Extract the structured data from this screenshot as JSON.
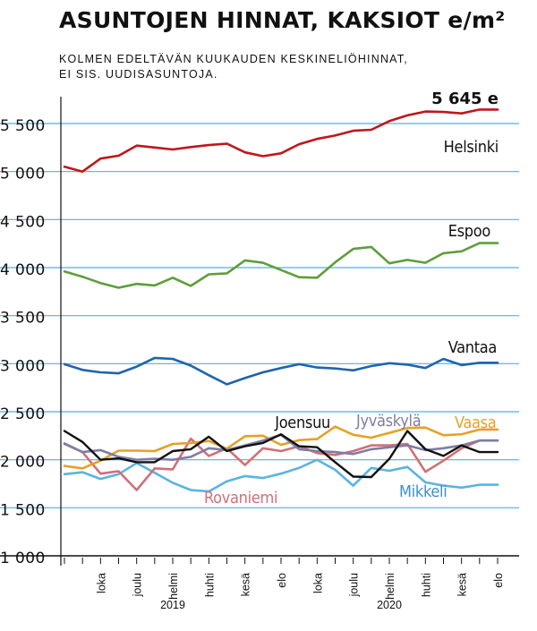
{
  "title": "ASUNTOJEN HINNAT, KAKSIOT e/m²",
  "subtitle_lines": [
    "KOLMEN EDELTÄVÄN KUUKAUDEN KESKINELIÖHINNAT,",
    "EI SIS. UUDISASUNTOJA."
  ],
  "chart_data": {
    "type": "line",
    "title": "ASUNTOJEN HINNAT, KAKSIOT e/m²",
    "subtitle": "KOLMEN EDELTÄVÄN KUUKAUDEN KESKINELIÖHINNAT, EI SIS. UUDISASUNTOJA.",
    "xlabel": "",
    "ylabel": "",
    "ylim": [
      1000,
      5800
    ],
    "y_ticks": [
      1000,
      1500,
      2000,
      2500,
      3000,
      3500,
      4000,
      4500,
      5000,
      5500
    ],
    "y_tick_labels": [
      "1 000",
      "1 500",
      "2 000",
      "2 500",
      "3 000",
      "3 500",
      "4 000",
      "4 500",
      "5 000",
      "5 500"
    ],
    "grid": true,
    "x": [
      "2019-08",
      "2019-09",
      "2019-10",
      "2019-11",
      "2019-12",
      "2020-01",
      "2020-02",
      "2020-03",
      "2020-04",
      "2020-05",
      "2020-06",
      "2020-07",
      "2020-08",
      "2020-09",
      "2020-10",
      "2020-11",
      "2020-12",
      "2021-01",
      "2021-02",
      "2021-03",
      "2021-04",
      "2021-05",
      "2021-06",
      "2021-07",
      "2021-08"
    ],
    "x_tick_labels": [
      {
        "x": "2019-10",
        "label": "loka"
      },
      {
        "x": "2019-12",
        "label": "joulu"
      },
      {
        "x": "2020-02",
        "label": "helmi"
      },
      {
        "x": "2020-04",
        "label": "huhti"
      },
      {
        "x": "2020-06",
        "label": "kesä"
      },
      {
        "x": "2020-08",
        "label": "elo"
      },
      {
        "x": "2020-10",
        "label": "loka"
      },
      {
        "x": "2020-12",
        "label": "joulu"
      },
      {
        "x": "2021-02",
        "label": "helmi"
      },
      {
        "x": "2021-04",
        "label": "huhti"
      },
      {
        "x": "2021-06",
        "label": "kesä"
      },
      {
        "x": "2021-08",
        "label": "elo"
      }
    ],
    "year_labels": [
      {
        "x": "2020-02",
        "label": "2019"
      },
      {
        "x": "2021-02",
        "label": "2020"
      }
    ],
    "end_value_label": "5 645 e",
    "series": [
      {
        "name": "Helsinki",
        "color": "#c0161c",
        "label_color": "#111111",
        "values": [
          5050,
          5000,
          5135,
          5165,
          5270,
          5250,
          5230,
          5255,
          5275,
          5290,
          5200,
          5160,
          5190,
          5285,
          5340,
          5375,
          5425,
          5435,
          5525,
          5585,
          5625,
          5620,
          5605,
          5645,
          5645
        ]
      },
      {
        "name": "Espoo",
        "color": "#5d9e3a",
        "label_color": "#111111",
        "values": [
          3960,
          3905,
          3840,
          3790,
          3830,
          3815,
          3895,
          3810,
          3930,
          3940,
          4075,
          4050,
          3975,
          3900,
          3895,
          4055,
          4195,
          4215,
          4045,
          4080,
          4050,
          4150,
          4170,
          4255,
          4255
        ]
      },
      {
        "name": "Vantaa",
        "color": "#1f64ad",
        "label_color": "#111111",
        "values": [
          2995,
          2935,
          2910,
          2900,
          2970,
          3060,
          3050,
          2980,
          2880,
          2785,
          2850,
          2910,
          2955,
          2995,
          2960,
          2950,
          2930,
          2975,
          3005,
          2990,
          2955,
          3050,
          2985,
          3010,
          3010
        ]
      },
      {
        "name": "Joensuu",
        "color": "#111111",
        "label_color": "#111111",
        "values": [
          2300,
          2185,
          2000,
          2015,
          1975,
          1975,
          2090,
          2110,
          2240,
          2090,
          2140,
          2175,
          2265,
          2140,
          2130,
          1975,
          1825,
          1820,
          2010,
          2300,
          2110,
          2040,
          2150,
          2080,
          2080
        ]
      },
      {
        "name": "Jyväskylä",
        "color": "#7d7ea3",
        "label_color": "#7d7ea3",
        "values": [
          2170,
          2080,
          2100,
          2030,
          2000,
          2010,
          2000,
          2030,
          2120,
          2100,
          2150,
          2200,
          2260,
          2110,
          2090,
          2080,
          2060,
          2110,
          2130,
          2150,
          2100,
          2120,
          2150,
          2200,
          2200
        ]
      },
      {
        "name": "Vaasa",
        "color": "#e5a127",
        "label_color": "#e5a127",
        "values": [
          1935,
          1910,
          1990,
          2095,
          2095,
          2090,
          2165,
          2175,
          2195,
          2115,
          2245,
          2250,
          2155,
          2205,
          2215,
          2345,
          2260,
          2230,
          2280,
          2330,
          2335,
          2255,
          2265,
          2315,
          2315
        ]
      },
      {
        "name": "Rovaniemi",
        "color": "#d06f7a",
        "label_color": "#d06f7a",
        "values": [
          2165,
          2080,
          1855,
          1880,
          1685,
          1910,
          1900,
          2220,
          2040,
          2120,
          1945,
          2120,
          2090,
          2140,
          2070,
          2050,
          2090,
          2150,
          2150,
          2165,
          1875,
          1990,
          2120,
          2200,
          2200
        ]
      },
      {
        "name": "Mikkeli",
        "color": "#5bb3e2",
        "label_color": "#3a8fcf",
        "values": [
          1850,
          1870,
          1800,
          1850,
          1965,
          1865,
          1760,
          1685,
          1670,
          1775,
          1830,
          1810,
          1855,
          1915,
          2000,
          1895,
          1730,
          1915,
          1885,
          1925,
          1765,
          1730,
          1710,
          1740,
          1740
        ]
      }
    ]
  }
}
